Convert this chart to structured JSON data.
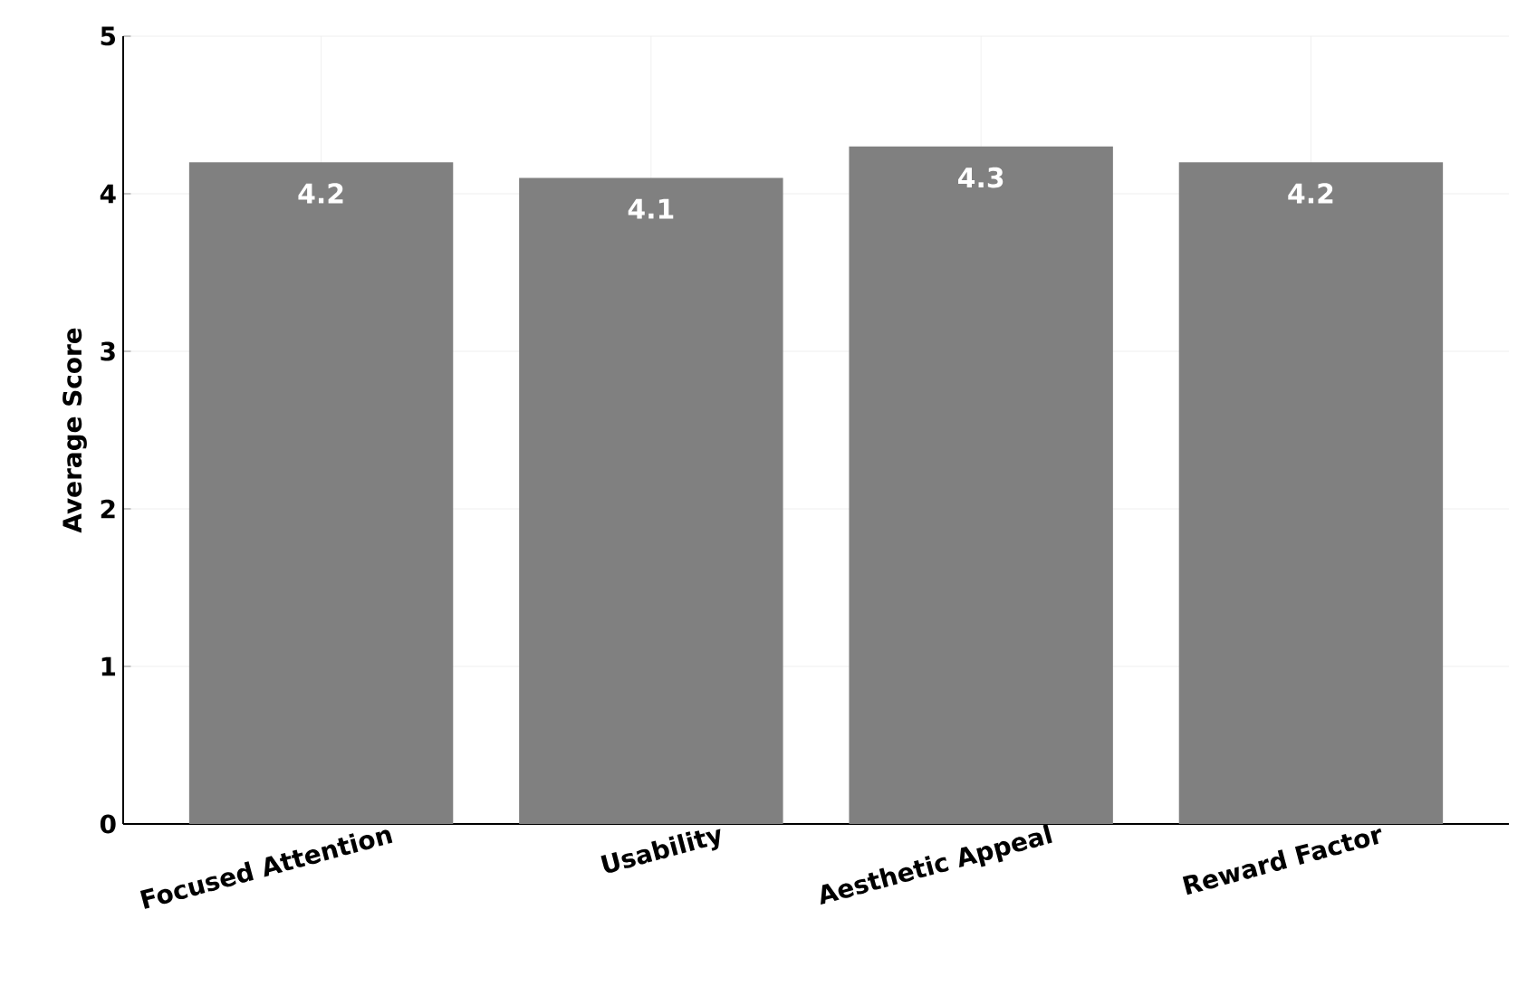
{
  "chart_data": {
    "type": "bar",
    "ylabel": "Average Score",
    "categories": [
      "Focused Attention",
      "Usability",
      "Aesthetic Appeal",
      "Reward Factor"
    ],
    "values": [
      4.2,
      4.1,
      4.3,
      4.2
    ],
    "color": "#808080",
    "ylim": [
      0,
      5
    ],
    "yticks": [
      0,
      1,
      2,
      3,
      4,
      5
    ],
    "grid": true,
    "data_labels": true
  }
}
